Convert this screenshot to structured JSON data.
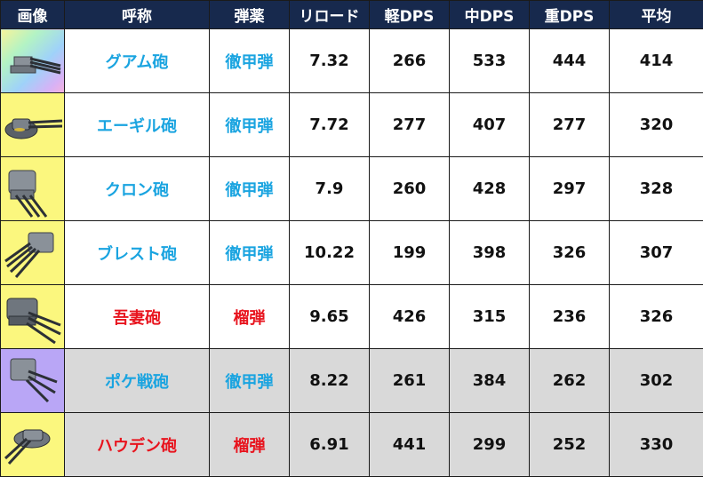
{
  "headers": [
    "画像",
    "呼称",
    "弾薬",
    "リロード",
    "軽DPS",
    "中DPS",
    "重DPS",
    "平均"
  ],
  "rows": [
    {
      "image": "triple-gun-turret-icon",
      "name": "グアム砲",
      "ammo": "徹甲弾",
      "reload": "7.32",
      "light_dps": "266",
      "medium_dps": "533",
      "heavy_dps": "444",
      "average": "414",
      "name_color": "#1aa4e0",
      "rarity_bg": "rainbow"
    },
    {
      "image": "twin-gun-turret-icon",
      "name": "エーギル砲",
      "ammo": "徹甲弾",
      "reload": "7.72",
      "light_dps": "277",
      "medium_dps": "407",
      "heavy_dps": "277",
      "average": "320",
      "name_color": "#1aa4e0",
      "rarity_bg": "#fbf77e"
    },
    {
      "image": "triple-gun-turret-icon",
      "name": "クロン砲",
      "ammo": "徹甲弾",
      "reload": "7.9",
      "light_dps": "260",
      "medium_dps": "428",
      "heavy_dps": "297",
      "average": "328",
      "name_color": "#1aa4e0",
      "rarity_bg": "#fbf77e"
    },
    {
      "image": "quad-gun-turret-icon",
      "name": "ブレスト砲",
      "ammo": "徹甲弾",
      "reload": "10.22",
      "light_dps": "199",
      "medium_dps": "398",
      "heavy_dps": "326",
      "average": "307",
      "name_color": "#1aa4e0",
      "rarity_bg": "#fbf77e"
    },
    {
      "image": "triple-gun-turret-icon",
      "name": "吾妻砲",
      "ammo": "榴弾",
      "reload": "9.65",
      "light_dps": "426",
      "medium_dps": "315",
      "heavy_dps": "236",
      "average": "326",
      "name_color": "#e8141e",
      "rarity_bg": "#fbf77e"
    },
    {
      "image": "triple-gun-turret-icon",
      "name": "ポケ戦砲",
      "ammo": "徹甲弾",
      "reload": "8.22",
      "light_dps": "261",
      "medium_dps": "384",
      "heavy_dps": "262",
      "average": "302",
      "name_color": "#1aa4e0",
      "rarity_bg": "#b9a6f6"
    },
    {
      "image": "twin-gun-turret-icon",
      "name": "ハウデン砲",
      "ammo": "榴弾",
      "reload": "6.91",
      "light_dps": "441",
      "medium_dps": "299",
      "heavy_dps": "252",
      "average": "330",
      "name_color": "#e8141e",
      "rarity_bg": "#fbf77e"
    }
  ]
}
